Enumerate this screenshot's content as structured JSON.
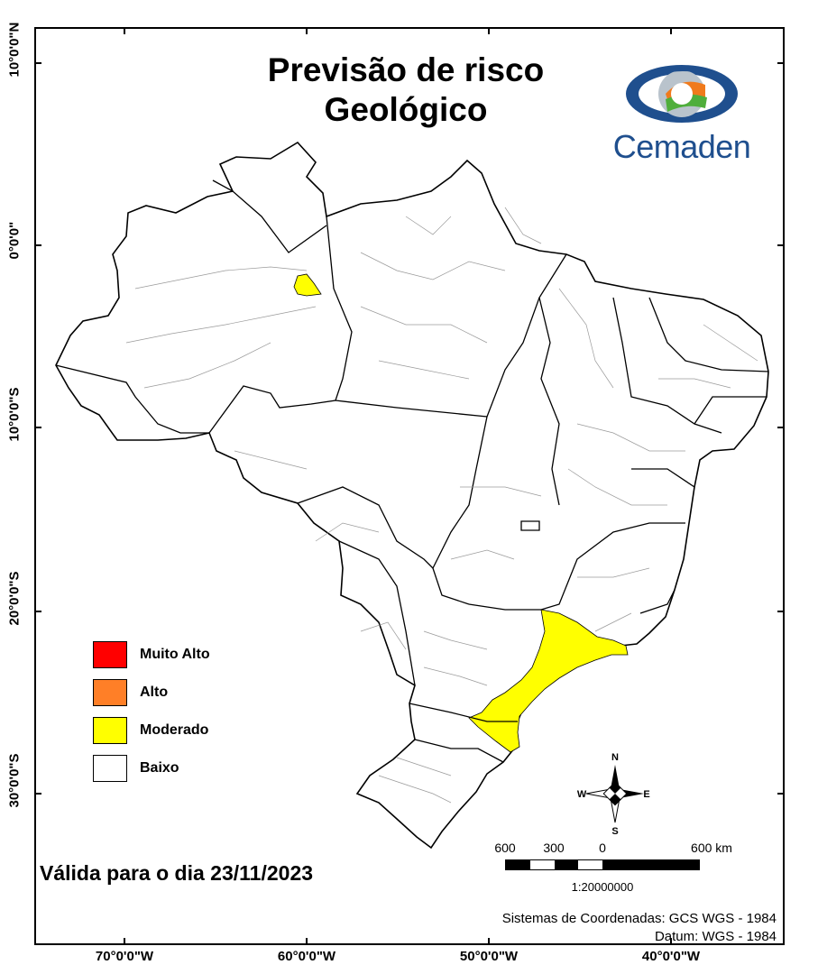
{
  "title": {
    "line1": "Previsão de risco",
    "line2": "Geológico"
  },
  "logo": {
    "text": "Cemaden",
    "colors": {
      "blue": "#1f4f8e",
      "green": "#4fae3c",
      "orange": "#f07a1c",
      "gray": "#b9c3cc"
    }
  },
  "latitude_labels": [
    "10°0'0\"N",
    "0°0'0\"",
    "10°0'0\"S",
    "20°0'0\"S",
    "30°0'0\"S"
  ],
  "longitude_labels": [
    "70°0'0\"W",
    "60°0'0\"W",
    "50°0'0\"W",
    "40°0'0\"W"
  ],
  "legend": [
    {
      "label": "Muito Alto",
      "color": "#ff0000"
    },
    {
      "label": "Alto",
      "color": "#ff7f27"
    },
    {
      "label": "Moderado",
      "color": "#ffff00"
    },
    {
      "label": "Baixo",
      "color": "#ffffff"
    }
  ],
  "valid_date": "Válida para o dia 23/11/2023",
  "scale": {
    "labels": [
      "600",
      "300",
      "0",
      "600 km"
    ],
    "ratio": "1:20000000"
  },
  "compass": {
    "n": "N",
    "s": "S",
    "e": "E",
    "w": "W"
  },
  "coordinates": {
    "system": "Sistemas de Coordenadas: GCS WGS - 1984",
    "datum": "Datum: WGS - 1984"
  },
  "map_colors": {
    "moderado": "#ffff00",
    "baixo": "#ffffff",
    "border": "#000000",
    "internal": "#8a8a8a"
  }
}
